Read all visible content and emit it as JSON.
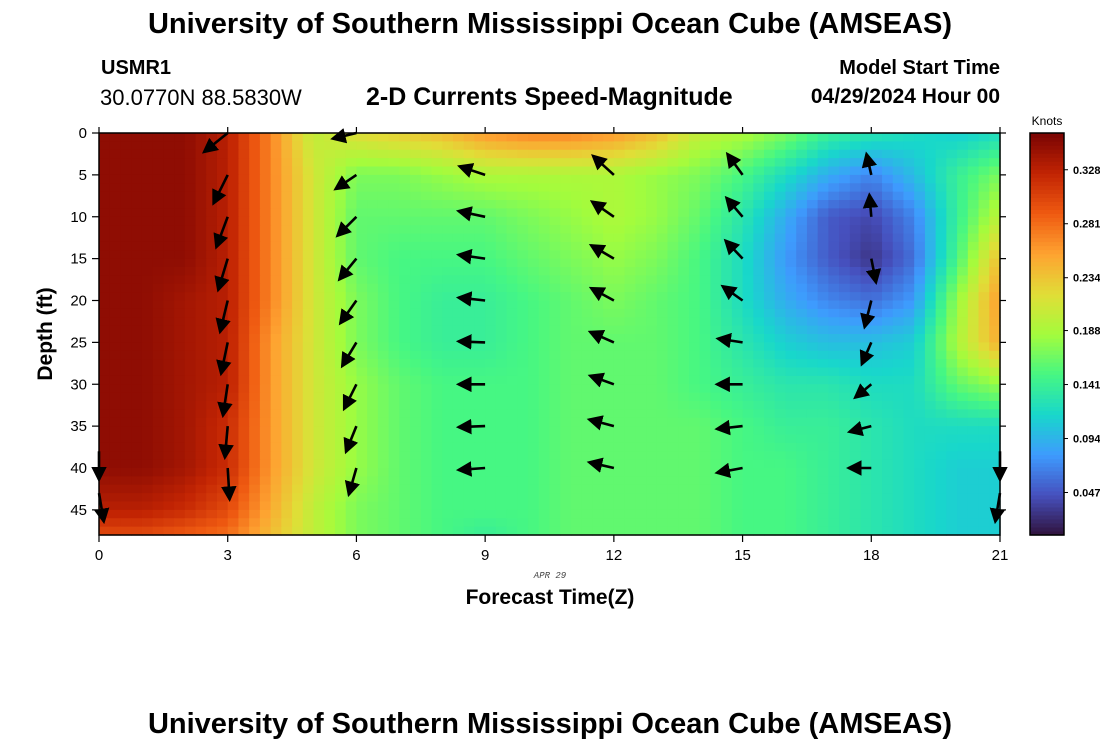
{
  "page": {
    "title": "University of Southern Mississippi Ocean Cube (AMSEAS)",
    "footer_title": "University of Southern Mississippi Ocean Cube (AMSEAS)",
    "station": "USMR1",
    "coordinates": "30.0770N  88.5830W",
    "subtitle": "2-D Currents Speed-Magnitude",
    "model_start_label": "Model Start Time",
    "model_start_value": "04/29/2024 Hour 00"
  },
  "chart_data": {
    "type": "heatmap",
    "title": "2-D Currents Speed-Magnitude",
    "xlabel": "Forecast Time(Z)",
    "ylabel": "Depth (ft)",
    "date_label": "APR 29",
    "xlim": [
      0,
      21
    ],
    "ylim": [
      48,
      0
    ],
    "x_ticks": [
      0,
      3,
      6,
      9,
      12,
      15,
      18,
      21
    ],
    "y_ticks": [
      0,
      5,
      10,
      15,
      20,
      25,
      30,
      35,
      40,
      45
    ],
    "colorbar": {
      "label": "Knots",
      "min": 0.01,
      "max": 0.36,
      "ticks": [
        "0.047",
        "0.094",
        "0.141",
        "0.188",
        "0.234",
        "0.281",
        "0.328"
      ]
    },
    "speed_knots": {
      "times": [
        0,
        1,
        2,
        3,
        4,
        5,
        6,
        7,
        8,
        9,
        10,
        11,
        12,
        13,
        14,
        15,
        16,
        17,
        18,
        19,
        20,
        21
      ],
      "depths": [
        0,
        5,
        10,
        15,
        20,
        25,
        30,
        35,
        40,
        45,
        48
      ],
      "values": [
        [
          0.35,
          0.35,
          0.35,
          0.33,
          0.27,
          0.2,
          0.22,
          0.23,
          0.24,
          0.26,
          0.27,
          0.27,
          0.26,
          0.24,
          0.2,
          0.19,
          0.17,
          0.14,
          0.13,
          0.12,
          0.11,
          0.12
        ],
        [
          0.35,
          0.35,
          0.35,
          0.33,
          0.27,
          0.21,
          0.17,
          0.17,
          0.18,
          0.19,
          0.19,
          0.19,
          0.19,
          0.18,
          0.17,
          0.15,
          0.12,
          0.09,
          0.07,
          0.1,
          0.14,
          0.17
        ],
        [
          0.35,
          0.35,
          0.35,
          0.33,
          0.27,
          0.21,
          0.16,
          0.16,
          0.16,
          0.16,
          0.17,
          0.18,
          0.19,
          0.18,
          0.16,
          0.13,
          0.09,
          0.05,
          0.04,
          0.07,
          0.14,
          0.2
        ],
        [
          0.35,
          0.35,
          0.35,
          0.33,
          0.27,
          0.21,
          0.16,
          0.15,
          0.15,
          0.15,
          0.16,
          0.17,
          0.18,
          0.17,
          0.15,
          0.12,
          0.08,
          0.05,
          0.03,
          0.06,
          0.15,
          0.24
        ],
        [
          0.35,
          0.35,
          0.34,
          0.33,
          0.27,
          0.21,
          0.17,
          0.15,
          0.14,
          0.14,
          0.15,
          0.16,
          0.17,
          0.16,
          0.15,
          0.12,
          0.09,
          0.07,
          0.06,
          0.08,
          0.18,
          0.26
        ],
        [
          0.35,
          0.35,
          0.34,
          0.33,
          0.26,
          0.21,
          0.17,
          0.15,
          0.14,
          0.14,
          0.15,
          0.16,
          0.16,
          0.16,
          0.15,
          0.13,
          0.11,
          0.1,
          0.1,
          0.11,
          0.19,
          0.25
        ],
        [
          0.35,
          0.35,
          0.34,
          0.33,
          0.26,
          0.21,
          0.18,
          0.16,
          0.15,
          0.15,
          0.15,
          0.16,
          0.16,
          0.16,
          0.15,
          0.14,
          0.13,
          0.13,
          0.12,
          0.12,
          0.16,
          0.18
        ],
        [
          0.35,
          0.35,
          0.34,
          0.32,
          0.26,
          0.21,
          0.18,
          0.16,
          0.15,
          0.15,
          0.15,
          0.16,
          0.16,
          0.16,
          0.16,
          0.15,
          0.14,
          0.14,
          0.13,
          0.12,
          0.12,
          0.12
        ],
        [
          0.35,
          0.35,
          0.34,
          0.32,
          0.26,
          0.21,
          0.18,
          0.16,
          0.15,
          0.15,
          0.15,
          0.16,
          0.16,
          0.16,
          0.16,
          0.15,
          0.15,
          0.14,
          0.13,
          0.12,
          0.11,
          0.11
        ],
        [
          0.33,
          0.33,
          0.32,
          0.3,
          0.25,
          0.2,
          0.17,
          0.16,
          0.15,
          0.15,
          0.15,
          0.16,
          0.16,
          0.16,
          0.16,
          0.15,
          0.15,
          0.14,
          0.13,
          0.12,
          0.11,
          0.11
        ],
        [
          0.3,
          0.3,
          0.29,
          0.28,
          0.24,
          0.2,
          0.17,
          0.16,
          0.15,
          0.14,
          0.15,
          0.16,
          0.16,
          0.16,
          0.16,
          0.15,
          0.15,
          0.14,
          0.13,
          0.12,
          0.11,
          0.11
        ]
      ]
    },
    "vector_depths": [
      3,
      8,
      13,
      18,
      23,
      28,
      33,
      38,
      43
    ],
    "vectors": [
      {
        "time": 0,
        "depth": 38,
        "u": 0.0,
        "v": -0.3
      },
      {
        "time": 0,
        "depth": 43,
        "u": 0.05,
        "v": -0.3
      },
      {
        "time": 3,
        "depth": 0,
        "u": -0.25,
        "v": -0.2
      },
      {
        "time": 3,
        "depth": 5,
        "u": -0.15,
        "v": -0.3
      },
      {
        "time": 3,
        "depth": 10,
        "u": -0.12,
        "v": -0.32
      },
      {
        "time": 3,
        "depth": 15,
        "u": -0.1,
        "v": -0.33
      },
      {
        "time": 3,
        "depth": 20,
        "u": -0.08,
        "v": -0.33
      },
      {
        "time": 3,
        "depth": 25,
        "u": -0.07,
        "v": -0.33
      },
      {
        "time": 3,
        "depth": 30,
        "u": -0.05,
        "v": -0.33
      },
      {
        "time": 3,
        "depth": 35,
        "u": -0.03,
        "v": -0.33
      },
      {
        "time": 3,
        "depth": 40,
        "u": 0.02,
        "v": -0.33
      },
      {
        "time": 6,
        "depth": 0,
        "u": -0.25,
        "v": -0.06
      },
      {
        "time": 6,
        "depth": 5,
        "u": -0.22,
        "v": -0.15
      },
      {
        "time": 6,
        "depth": 10,
        "u": -0.2,
        "v": -0.2
      },
      {
        "time": 6,
        "depth": 15,
        "u": -0.18,
        "v": -0.22
      },
      {
        "time": 6,
        "depth": 20,
        "u": -0.17,
        "v": -0.24
      },
      {
        "time": 6,
        "depth": 25,
        "u": -0.15,
        "v": -0.25
      },
      {
        "time": 6,
        "depth": 30,
        "u": -0.13,
        "v": -0.26
      },
      {
        "time": 6,
        "depth": 35,
        "u": -0.11,
        "v": -0.27
      },
      {
        "time": 6,
        "depth": 40,
        "u": -0.08,
        "v": -0.28
      },
      {
        "time": 9,
        "depth": 5,
        "u": -0.27,
        "v": 0.09
      },
      {
        "time": 9,
        "depth": 10,
        "u": -0.28,
        "v": 0.06
      },
      {
        "time": 9,
        "depth": 15,
        "u": -0.28,
        "v": 0.04
      },
      {
        "time": 9,
        "depth": 20,
        "u": -0.28,
        "v": 0.03
      },
      {
        "time": 9,
        "depth": 25,
        "u": -0.28,
        "v": 0.01
      },
      {
        "time": 9,
        "depth": 30,
        "u": -0.28,
        "v": 0.0
      },
      {
        "time": 9,
        "depth": 35,
        "u": -0.28,
        "v": -0.01
      },
      {
        "time": 9,
        "depth": 40,
        "u": -0.28,
        "v": -0.02
      },
      {
        "time": 12,
        "depth": 5,
        "u": -0.22,
        "v": 0.2
      },
      {
        "time": 12,
        "depth": 10,
        "u": -0.23,
        "v": 0.16
      },
      {
        "time": 12,
        "depth": 15,
        "u": -0.24,
        "v": 0.14
      },
      {
        "time": 12,
        "depth": 20,
        "u": -0.24,
        "v": 0.13
      },
      {
        "time": 12,
        "depth": 25,
        "u": -0.25,
        "v": 0.11
      },
      {
        "time": 12,
        "depth": 30,
        "u": -0.25,
        "v": 0.09
      },
      {
        "time": 12,
        "depth": 35,
        "u": -0.26,
        "v": 0.07
      },
      {
        "time": 12,
        "depth": 40,
        "u": -0.26,
        "v": 0.06
      },
      {
        "time": 15,
        "depth": 5,
        "u": -0.16,
        "v": 0.22
      },
      {
        "time": 15,
        "depth": 10,
        "u": -0.17,
        "v": 0.2
      },
      {
        "time": 15,
        "depth": 15,
        "u": -0.18,
        "v": 0.19
      },
      {
        "time": 15,
        "depth": 20,
        "u": -0.21,
        "v": 0.15
      },
      {
        "time": 15,
        "depth": 25,
        "u": -0.26,
        "v": 0.04
      },
      {
        "time": 15,
        "depth": 30,
        "u": -0.27,
        "v": 0.0
      },
      {
        "time": 15,
        "depth": 35,
        "u": -0.27,
        "v": -0.03
      },
      {
        "time": 15,
        "depth": 40,
        "u": -0.27,
        "v": -0.05
      },
      {
        "time": 18,
        "depth": 5,
        "u": -0.05,
        "v": 0.22
      },
      {
        "time": 18,
        "depth": 10,
        "u": -0.02,
        "v": 0.23
      },
      {
        "time": 18,
        "depth": 15,
        "u": 0.05,
        "v": -0.25
      },
      {
        "time": 18,
        "depth": 20,
        "u": -0.07,
        "v": -0.28
      },
      {
        "time": 18,
        "depth": 25,
        "u": -0.1,
        "v": -0.23
      },
      {
        "time": 18,
        "depth": 30,
        "u": -0.17,
        "v": -0.14
      },
      {
        "time": 18,
        "depth": 35,
        "u": -0.23,
        "v": -0.06
      },
      {
        "time": 18,
        "depth": 40,
        "u": -0.24,
        "v": 0.0
      },
      {
        "time": 21,
        "depth": 38,
        "u": 0.0,
        "v": -0.3
      },
      {
        "time": 21,
        "depth": 43,
        "u": -0.05,
        "v": -0.3
      }
    ]
  }
}
